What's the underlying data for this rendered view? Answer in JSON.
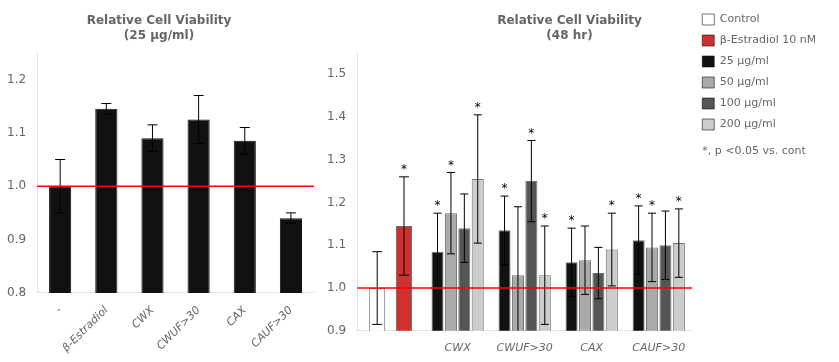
{
  "chart_data": [
    {
      "type": "bar",
      "title": "Relative Cell Viability\n(25 μg/ml)",
      "categories": [
        "-",
        "β-Estradiol",
        "CWX",
        "CWUF>30",
        "CAX",
        "CAUF>30"
      ],
      "values": [
        1.0,
        1.145,
        1.09,
        1.125,
        1.085,
        0.94
      ],
      "errors": [
        0.05,
        0.01,
        0.025,
        0.045,
        0.025,
        0.01
      ],
      "color": "#111111",
      "ylim": [
        0.8,
        1.25
      ],
      "yticks": [
        0.8,
        0.9,
        {
          "value": 1.0,
          "label": "1.0"
        },
        1.1,
        1.2
      ],
      "reference_line": {
        "value": 1.0,
        "color": "red"
      },
      "grid": false
    },
    {
      "type": "bar",
      "title": "Relative Cell Viability\n(48 hr)",
      "categories": [
        null,
        "CWX",
        "CWUF>30",
        "CAX",
        "CAUF>30"
      ],
      "series": [
        {
          "name": "Control",
          "color": "#ffffff",
          "values": [
            1.0,
            null,
            null,
            null,
            null
          ],
          "errors": [
            0.085,
            null,
            null,
            null,
            null
          ],
          "significant": [
            false,
            null,
            null,
            null,
            null
          ]
        },
        {
          "name": "β-Estradiol 10 nM",
          "color": "#d03030",
          "values": [
            1.145,
            null,
            null,
            null,
            null
          ],
          "errors": [
            0.115,
            null,
            null,
            null,
            null
          ],
          "significant": [
            true,
            null,
            null,
            null,
            null
          ]
        },
        {
          "name": "25 μg/ml",
          "color": "#111111",
          "values": [
            null,
            1.085,
            1.135,
            1.06,
            1.112
          ],
          "errors": [
            null,
            0.09,
            0.08,
            0.08,
            0.08
          ],
          "significant": [
            null,
            true,
            true,
            true,
            true
          ]
        },
        {
          "name": "50 μg/ml",
          "color": "#aaaaaa",
          "values": [
            null,
            1.175,
            1.03,
            1.065,
            1.095
          ],
          "errors": [
            null,
            0.095,
            0.16,
            0.08,
            0.08
          ],
          "significant": [
            null,
            true,
            false,
            false,
            true
          ]
        },
        {
          "name": "100 μg/ml",
          "color": "#555555",
          "values": [
            null,
            1.14,
            1.25,
            1.035,
            1.1
          ],
          "errors": [
            null,
            0.08,
            0.095,
            0.06,
            0.08
          ],
          "significant": [
            null,
            false,
            true,
            false,
            false
          ]
        },
        {
          "name": "200 μg/ml",
          "color": "#cccccc",
          "values": [
            null,
            1.255,
            1.03,
            1.09,
            1.105
          ],
          "errors": [
            null,
            0.15,
            0.115,
            0.085,
            0.08
          ],
          "significant": [
            null,
            true,
            true,
            true,
            true
          ]
        }
      ],
      "significance_label": "*",
      "note": "*, p <0.05 vs. cont",
      "ylim": [
        0.9,
        1.55
      ],
      "yticks": [
        0.9,
        {
          "value": 1.0,
          "label": "1.0"
        },
        1.1,
        1.2,
        1.3,
        1.4,
        1.5
      ],
      "reference_line": {
        "value": 1.0,
        "color": "red"
      },
      "legend": "right",
      "grid": false
    }
  ]
}
